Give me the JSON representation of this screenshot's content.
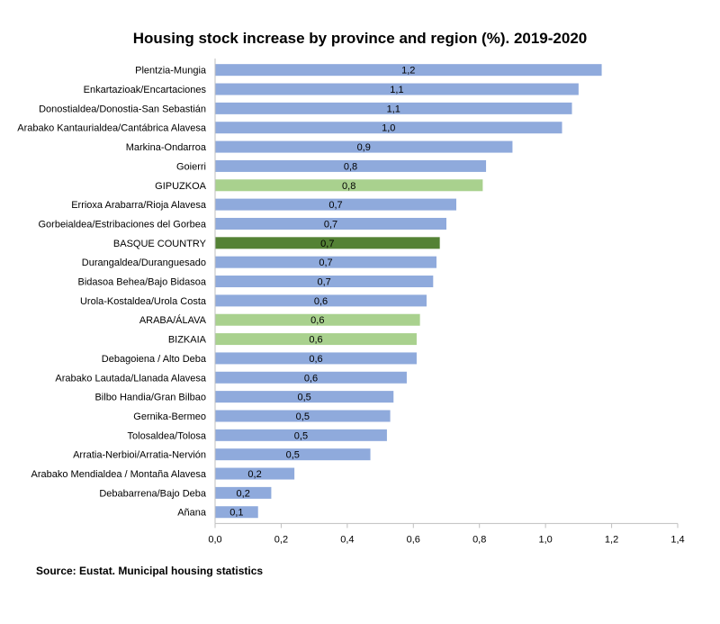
{
  "chart_data": {
    "type": "bar",
    "orientation": "horizontal",
    "title": "Housing stock increase by province and region (%). 2019-2020",
    "xlabel": "",
    "ylabel": "",
    "xlim": [
      0,
      1.4
    ],
    "tick_step": 0.2,
    "tick_labels": [
      "0,0",
      "0,2",
      "0,4",
      "0,6",
      "0,8",
      "1,0",
      "1,2",
      "1,4"
    ],
    "grid": false,
    "categories": [
      "Plentzia-Mungia",
      "Enkartazioak/Encartaciones",
      "Donostialdea/Donostia-San Sebastián",
      "Arabako Kantaurialdea/Cantábrica Alavesa",
      "Markina-Ondarroa",
      "Goierri",
      "GIPUZKOA",
      "Errioxa Arabarra/Rioja Alavesa",
      "Gorbeialdea/Estribaciones del Gorbea",
      "BASQUE COUNTRY",
      "Durangaldea/Duranguesado",
      "Bidasoa Behea/Bajo Bidasoa",
      "Urola-Kostaldea/Urola Costa",
      "ARABA/ÁLAVA",
      "BIZKAIA",
      "Debagoiena / Alto Deba",
      "Arabako Lautada/Llanada Alavesa",
      "Bilbo Handia/Gran Bilbao",
      "Gernika-Bermeo",
      "Tolosaldea/Tolosa",
      "Arratia-Nerbioi/Arratia-Nervión",
      "Arabako Mendialdea / Montaña Alavesa",
      "Debabarrena/Bajo Deba",
      "Añana"
    ],
    "values": [
      1.17,
      1.1,
      1.08,
      1.05,
      0.9,
      0.82,
      0.81,
      0.73,
      0.7,
      0.68,
      0.67,
      0.66,
      0.64,
      0.62,
      0.61,
      0.61,
      0.58,
      0.54,
      0.53,
      0.52,
      0.47,
      0.24,
      0.17,
      0.13
    ],
    "value_labels": [
      "1,2",
      "1,1",
      "1,1",
      "1,0",
      "0,9",
      "0,8",
      "0,8",
      "0,7",
      "0,7",
      "0,7",
      "0,7",
      "0,7",
      "0,6",
      "0,6",
      "0,6",
      "0,6",
      "0,6",
      "0,5",
      "0,5",
      "0,5",
      "0,5",
      "0,2",
      "0,2",
      "0,1"
    ],
    "bar_kinds": [
      "comarca",
      "comarca",
      "comarca",
      "comarca",
      "comarca",
      "comarca",
      "province",
      "comarca",
      "comarca",
      "region",
      "comarca",
      "comarca",
      "comarca",
      "province",
      "province",
      "comarca",
      "comarca",
      "comarca",
      "comarca",
      "comarca",
      "comarca",
      "comarca",
      "comarca",
      "comarca"
    ],
    "colors": {
      "comarca": "#8faadc",
      "province": "#a9d18e",
      "region": "#548235",
      "axis": "#bfbfbf"
    }
  },
  "source": "Source: Eustat. Municipal housing statistics"
}
